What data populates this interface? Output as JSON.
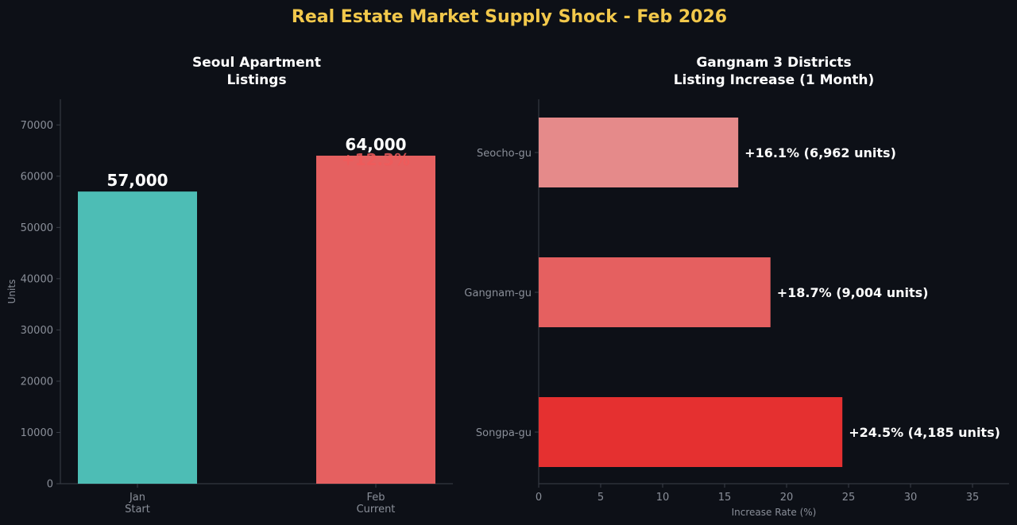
{
  "title": "Real Estate Market Supply Shock - Feb 2026",
  "chart_data": [
    {
      "type": "bar",
      "title_lines": [
        "Seoul Apartment",
        "Listings"
      ],
      "ylabel": "Units",
      "ylim": [
        0,
        75000
      ],
      "yticks": [
        "0",
        "10000",
        "20000",
        "30000",
        "40000",
        "50000",
        "60000",
        "70000"
      ],
      "categories": [
        {
          "lines": [
            "Jan",
            "Start"
          ],
          "value": 57000,
          "value_label": "57,000",
          "color": "#4dbdb5"
        },
        {
          "lines": [
            "Feb",
            "Current"
          ],
          "value": 64000,
          "value_label": "64,000",
          "color": "#e56060"
        }
      ],
      "change_label": "+12.3%",
      "change_color": "#f05a5a"
    },
    {
      "type": "bar",
      "orientation": "horizontal",
      "title_lines": [
        "Gangnam 3 Districts",
        "Listing Increase (1 Month)"
      ],
      "xlabel": "Increase Rate (%)",
      "xlim": [
        0,
        38
      ],
      "xticks": [
        "0",
        "5",
        "10",
        "15",
        "20",
        "25",
        "30",
        "35"
      ],
      "categories": [
        {
          "name": "Seocho-gu",
          "value": 16.1,
          "annotation": "+16.1%  (6,962 units)",
          "color": "#e58a8a"
        },
        {
          "name": "Gangnam-gu",
          "value": 18.7,
          "annotation": "+18.7%  (9,004 units)",
          "color": "#e56060"
        },
        {
          "name": "Songpa-gu",
          "value": 24.5,
          "annotation": "+24.5%  (4,185 units)",
          "color": "#e53030"
        }
      ]
    }
  ]
}
